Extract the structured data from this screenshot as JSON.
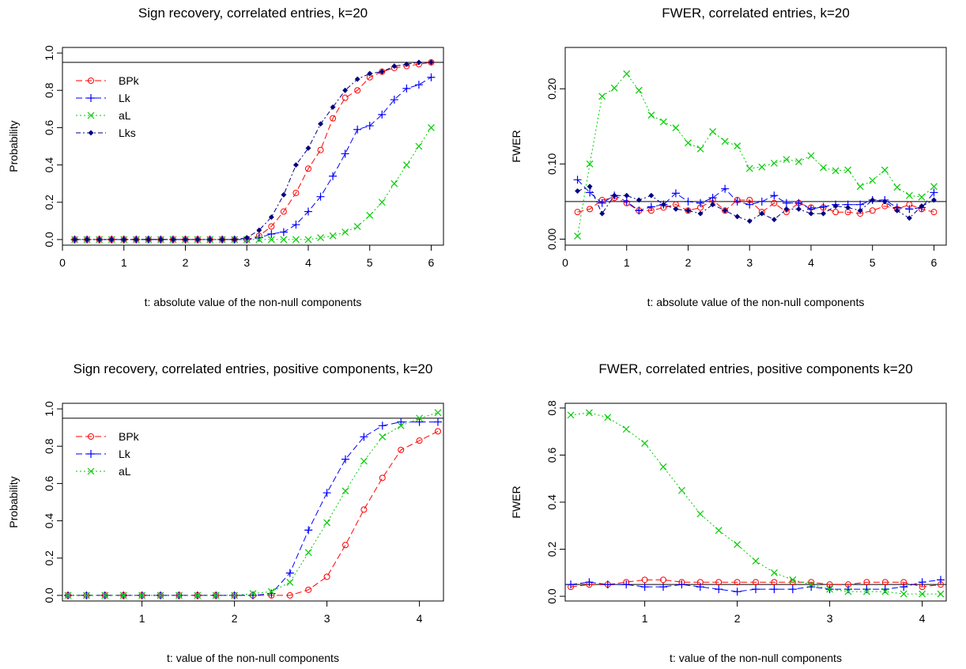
{
  "chart_data": [
    {
      "type": "line",
      "title": "Sign recovery, correlated entries, k=20",
      "xlabel": "t: absolute value of the non-null components",
      "ylabel": "Probability",
      "xlim": [
        0,
        6.2
      ],
      "ylim": [
        -0.03,
        1.03
      ],
      "xticks": [
        "0",
        "1",
        "2",
        "3",
        "4",
        "5",
        "6"
      ],
      "yticks": [
        "0.0",
        "0.2",
        "0.4",
        "0.6",
        "0.8",
        "1.0"
      ],
      "hline": 0.95,
      "legend_position": "top-left",
      "x": [
        0.2,
        0.4,
        0.6,
        0.8,
        1.0,
        1.2,
        1.4,
        1.6,
        1.8,
        2.0,
        2.2,
        2.4,
        2.6,
        2.8,
        3.0,
        3.2,
        3.4,
        3.6,
        3.8,
        4.0,
        4.2,
        4.4,
        4.6,
        4.8,
        5.0,
        5.2,
        5.4,
        5.6,
        5.8,
        6.0
      ],
      "series": [
        {
          "name": "BPk",
          "color": "#FF0000",
          "marker": "circle",
          "dash": "8,4",
          "values": [
            0,
            0,
            0,
            0,
            0,
            0,
            0,
            0,
            0,
            0,
            0,
            0,
            0,
            0,
            0,
            0.02,
            0.07,
            0.15,
            0.25,
            0.38,
            0.48,
            0.65,
            0.76,
            0.8,
            0.87,
            0.9,
            0.92,
            0.93,
            0.94,
            0.95
          ]
        },
        {
          "name": "Lk",
          "color": "#0000FF",
          "marker": "plus",
          "dash": "8,4",
          "values": [
            0,
            0,
            0,
            0,
            0,
            0,
            0,
            0,
            0,
            0,
            0,
            0,
            0,
            0,
            0,
            0.01,
            0.03,
            0.04,
            0.08,
            0.15,
            0.23,
            0.34,
            0.46,
            0.59,
            0.61,
            0.67,
            0.75,
            0.81,
            0.83,
            0.87
          ]
        },
        {
          "name": "aL",
          "color": "#00CC00",
          "marker": "cross",
          "dash": "2,3",
          "values": [
            0,
            0,
            0,
            0,
            0,
            0,
            0,
            0,
            0,
            0,
            0,
            0,
            0,
            0,
            0,
            0,
            0,
            0,
            0,
            0,
            0.01,
            0.02,
            0.04,
            0.07,
            0.13,
            0.2,
            0.3,
            0.4,
            0.5,
            0.6
          ]
        },
        {
          "name": "Lks",
          "color": "#000080",
          "marker": "diamond",
          "dash": "6,3,2,3",
          "values": [
            0,
            0,
            0,
            0,
            0,
            0,
            0,
            0,
            0,
            0,
            0,
            0,
            0,
            0,
            0.01,
            0.05,
            0.12,
            0.24,
            0.4,
            0.49,
            0.62,
            0.71,
            0.8,
            0.86,
            0.89,
            0.9,
            0.93,
            0.94,
            0.95,
            0.95
          ]
        }
      ]
    },
    {
      "type": "line",
      "title": "FWER, correlated entries, k=20",
      "xlabel": "t: absolute value of the non-null components",
      "ylabel": "FWER",
      "xlim": [
        0,
        6.2
      ],
      "ylim": [
        -0.008,
        0.255
      ],
      "xticks": [
        "0",
        "1",
        "2",
        "3",
        "4",
        "5",
        "6"
      ],
      "yticks": [
        "0.00",
        "0.10",
        "0.20"
      ],
      "hline": 0.05,
      "x": [
        0.2,
        0.4,
        0.6,
        0.8,
        1.0,
        1.2,
        1.4,
        1.6,
        1.8,
        2.0,
        2.2,
        2.4,
        2.6,
        2.8,
        3.0,
        3.2,
        3.4,
        3.6,
        3.8,
        4.0,
        4.2,
        4.4,
        4.6,
        4.8,
        5.0,
        5.2,
        5.4,
        5.6,
        5.8,
        6.0
      ],
      "series": [
        {
          "name": "BPk",
          "color": "#FF0000",
          "marker": "circle",
          "dash": "8,4",
          "values": [
            0.036,
            0.04,
            0.052,
            0.055,
            0.048,
            0.038,
            0.038,
            0.042,
            0.046,
            0.038,
            0.042,
            0.052,
            0.038,
            0.052,
            0.052,
            0.036,
            0.048,
            0.036,
            0.048,
            0.042,
            0.042,
            0.036,
            0.036,
            0.034,
            0.038,
            0.044,
            0.04,
            0.046,
            0.04,
            0.036
          ]
        },
        {
          "name": "Lk",
          "color": "#0000FF",
          "marker": "plus",
          "dash": "8,4",
          "values": [
            0.079,
            0.062,
            0.048,
            0.058,
            0.05,
            0.038,
            0.043,
            0.046,
            0.061,
            0.05,
            0.048,
            0.055,
            0.067,
            0.05,
            0.046,
            0.05,
            0.058,
            0.048,
            0.048,
            0.04,
            0.043,
            0.046,
            0.046,
            0.046,
            0.052,
            0.052,
            0.042,
            0.04,
            0.042,
            0.062
          ]
        },
        {
          "name": "aL",
          "color": "#00CC00",
          "marker": "cross",
          "dash": "2,3",
          "values": [
            0.004,
            0.1,
            0.19,
            0.201,
            0.22,
            0.198,
            0.165,
            0.156,
            0.148,
            0.128,
            0.12,
            0.143,
            0.13,
            0.124,
            0.094,
            0.096,
            0.101,
            0.106,
            0.103,
            0.111,
            0.095,
            0.091,
            0.092,
            0.07,
            0.078,
            0.092,
            0.069,
            0.058,
            0.056,
            0.07
          ]
        },
        {
          "name": "Lks",
          "color": "#000080",
          "marker": "diamond",
          "dash": "6,3,2,3",
          "values": [
            0.064,
            0.07,
            0.034,
            0.058,
            0.058,
            0.052,
            0.058,
            0.046,
            0.04,
            0.038,
            0.034,
            0.046,
            0.038,
            0.03,
            0.024,
            0.034,
            0.026,
            0.04,
            0.04,
            0.034,
            0.034,
            0.044,
            0.042,
            0.038,
            0.052,
            0.05,
            0.038,
            0.028,
            0.044,
            0.052
          ]
        }
      ]
    },
    {
      "type": "line",
      "title": "Sign recovery, correlated entries, positive components, k=20",
      "xlabel": "t:  value of the non-null components",
      "ylabel": "Probability",
      "xlim": [
        0.14,
        4.26
      ],
      "ylim": [
        -0.03,
        1.03
      ],
      "xticks": [
        "1",
        "2",
        "3",
        "4"
      ],
      "yticks": [
        "0.0",
        "0.2",
        "0.4",
        "0.6",
        "0.8",
        "1.0"
      ],
      "hline": 0.95,
      "legend_position": "top-left",
      "x": [
        0.2,
        0.4,
        0.6,
        0.8,
        1.0,
        1.2,
        1.4,
        1.6,
        1.8,
        2.0,
        2.2,
        2.4,
        2.6,
        2.8,
        3.0,
        3.2,
        3.4,
        3.6,
        3.8,
        4.0,
        4.2
      ],
      "series": [
        {
          "name": "BPk",
          "color": "#FF0000",
          "marker": "circle",
          "dash": "8,4",
          "values": [
            0,
            0,
            0,
            0,
            0,
            0,
            0,
            0,
            0,
            0,
            0,
            0,
            0,
            0.03,
            0.1,
            0.27,
            0.46,
            0.63,
            0.78,
            0.83,
            0.88
          ]
        },
        {
          "name": "Lk",
          "color": "#0000FF",
          "marker": "plus",
          "dash": "8,4",
          "values": [
            0,
            0,
            0,
            0,
            0,
            0,
            0,
            0,
            0,
            0,
            0,
            0.01,
            0.12,
            0.35,
            0.55,
            0.73,
            0.85,
            0.91,
            0.93,
            0.93,
            0.93
          ]
        },
        {
          "name": "aL",
          "color": "#00CC00",
          "marker": "cross",
          "dash": "2,3",
          "values": [
            0,
            0,
            0,
            0,
            0,
            0,
            0,
            0,
            0,
            0,
            0.01,
            0.02,
            0.07,
            0.23,
            0.39,
            0.56,
            0.72,
            0.85,
            0.91,
            0.95,
            0.98
          ]
        }
      ]
    },
    {
      "type": "line",
      "title": "FWER, correlated entries, positive components k=20",
      "xlabel": "t:  value of the non-null components",
      "ylabel": "FWER",
      "xlim": [
        0.14,
        4.26
      ],
      "ylim": [
        -0.02,
        0.82
      ],
      "xticks": [
        "1",
        "2",
        "3",
        "4"
      ],
      "yticks": [
        "0.0",
        "0.2",
        "0.4",
        "0.6",
        "0.8"
      ],
      "hline": 0.05,
      "x": [
        0.2,
        0.4,
        0.6,
        0.8,
        1.0,
        1.2,
        1.4,
        1.6,
        1.8,
        2.0,
        2.2,
        2.4,
        2.6,
        2.8,
        3.0,
        3.2,
        3.4,
        3.6,
        3.8,
        4.0,
        4.2
      ],
      "series": [
        {
          "name": "BPk",
          "color": "#FF0000",
          "marker": "circle",
          "dash": "8,4",
          "values": [
            0.04,
            0.05,
            0.05,
            0.06,
            0.07,
            0.07,
            0.06,
            0.06,
            0.06,
            0.06,
            0.06,
            0.06,
            0.06,
            0.06,
            0.05,
            0.05,
            0.06,
            0.06,
            0.06,
            0.04,
            0.05
          ]
        },
        {
          "name": "Lk",
          "color": "#0000FF",
          "marker": "plus",
          "dash": "8,4",
          "values": [
            0.05,
            0.06,
            0.05,
            0.05,
            0.04,
            0.04,
            0.05,
            0.04,
            0.03,
            0.02,
            0.03,
            0.03,
            0.03,
            0.04,
            0.03,
            0.03,
            0.03,
            0.03,
            0.04,
            0.06,
            0.07
          ]
        },
        {
          "name": "aL",
          "color": "#00CC00",
          "marker": "cross",
          "dash": "2,3",
          "values": [
            0.77,
            0.78,
            0.76,
            0.71,
            0.65,
            0.55,
            0.45,
            0.35,
            0.28,
            0.22,
            0.15,
            0.1,
            0.07,
            0.05,
            0.03,
            0.02,
            0.02,
            0.02,
            0.01,
            0.01,
            0.01
          ]
        }
      ]
    }
  ]
}
